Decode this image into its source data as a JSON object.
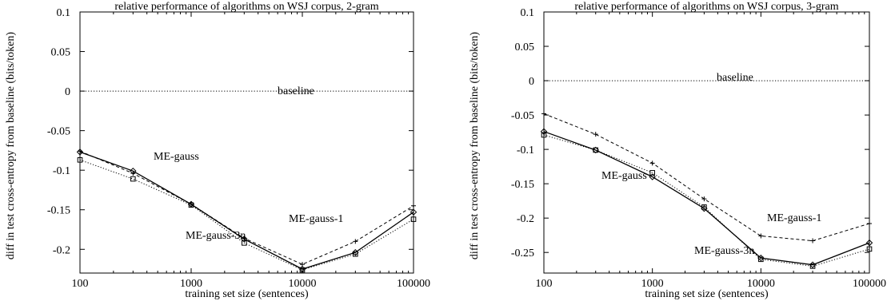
{
  "chart_data": [
    {
      "type": "line",
      "title": "relative performance of algorithms on WSJ corpus, 2-gram",
      "xlabel": "training set size (sentences)",
      "ylabel": "diff in test cross-entropy from baseline (bits/token)",
      "xscale": "log",
      "xlim": [
        100,
        100000
      ],
      "ylim": [
        -0.23,
        0.1
      ],
      "xticks": [
        "100",
        "1000",
        "10000",
        "100000"
      ],
      "yticks": [
        "0.1",
        "0.05",
        "0",
        "-0.05",
        "-0.1",
        "-0.15",
        "-0.2"
      ],
      "x": [
        100,
        300,
        1000,
        3000,
        10000,
        30000,
        100000
      ],
      "series": [
        {
          "name": "baseline",
          "values": [
            0,
            0,
            0,
            0,
            0,
            0,
            0
          ],
          "style": "dotted",
          "marker": "none"
        },
        {
          "name": "ME-gauss",
          "values": [
            -0.077,
            -0.101,
            -0.143,
            -0.187,
            -0.225,
            -0.204,
            -0.153
          ],
          "style": "solid",
          "marker": "diamond"
        },
        {
          "name": "ME-gauss-1",
          "values": [
            -0.076,
            -0.104,
            -0.143,
            -0.186,
            -0.219,
            -0.19,
            -0.145
          ],
          "style": "dashed",
          "marker": "plus"
        },
        {
          "name": "ME-gauss-3n",
          "values": [
            -0.087,
            -0.111,
            -0.144,
            -0.192,
            -0.226,
            -0.206,
            -0.162
          ],
          "style": "dotted",
          "marker": "square"
        }
      ],
      "annotations": [
        {
          "text": "baseline",
          "series": "baseline"
        },
        {
          "text": "ME-gauss",
          "series": "ME-gauss"
        },
        {
          "text": "ME-gauss-1",
          "series": "ME-gauss-1"
        },
        {
          "text": "ME-gauss-3n",
          "series": "ME-gauss-3n"
        }
      ]
    },
    {
      "type": "line",
      "title": "relative performance of algorithms on WSJ corpus, 3-gram",
      "xlabel": "training set size (sentences)",
      "ylabel": "diff in test cross-entropy from baseline (bits/token)",
      "xscale": "log",
      "xlim": [
        100,
        100000
      ],
      "ylim": [
        -0.28,
        0.1
      ],
      "xticks": [
        "100",
        "1000",
        "10000",
        "100000"
      ],
      "yticks": [
        "0.1",
        "0.05",
        "0",
        "-0.05",
        "-0.1",
        "-0.15",
        "-0.2",
        "-0.25"
      ],
      "x": [
        100,
        300,
        1000,
        3000,
        10000,
        30000,
        100000
      ],
      "series": [
        {
          "name": "baseline",
          "values": [
            0,
            0,
            0,
            0,
            0,
            0,
            0
          ],
          "style": "dotted",
          "marker": "none"
        },
        {
          "name": "ME-gauss",
          "values": [
            -0.074,
            -0.101,
            -0.14,
            -0.186,
            -0.258,
            -0.268,
            -0.236
          ],
          "style": "solid",
          "marker": "diamond"
        },
        {
          "name": "ME-gauss-1",
          "values": [
            -0.048,
            -0.078,
            -0.12,
            -0.172,
            -0.226,
            -0.233,
            -0.208
          ],
          "style": "dashed",
          "marker": "plus"
        },
        {
          "name": "ME-gauss-3n",
          "values": [
            -0.079,
            -0.101,
            -0.134,
            -0.184,
            -0.26,
            -0.27,
            -0.245
          ],
          "style": "dotted",
          "marker": "square"
        }
      ],
      "annotations": [
        {
          "text": "baseline",
          "series": "baseline"
        },
        {
          "text": "ME-gauss",
          "series": "ME-gauss"
        },
        {
          "text": "ME-gauss-1",
          "series": "ME-gauss-1"
        },
        {
          "text": "ME-gauss-3n",
          "series": "ME-gauss-3n"
        }
      ]
    }
  ]
}
